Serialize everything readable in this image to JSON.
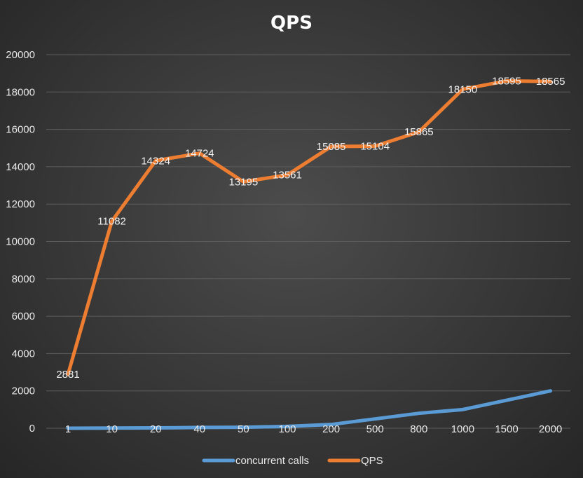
{
  "chart_data": {
    "type": "line",
    "title": "QPS",
    "x": [
      "1",
      "10",
      "20",
      "40",
      "50",
      "100",
      "200",
      "500",
      "800",
      "1000",
      "1500",
      "2000"
    ],
    "ylim": [
      0,
      20000
    ],
    "yticks": [
      0,
      2000,
      4000,
      6000,
      8000,
      10000,
      12000,
      14000,
      16000,
      18000,
      20000
    ],
    "grid": true,
    "legend_position": "bottom",
    "series": [
      {
        "name": "concurrent calls",
        "color": "#5b9bd5",
        "values": [
          1,
          10,
          20,
          40,
          50,
          100,
          200,
          500,
          800,
          1000,
          1500,
          2000
        ]
      },
      {
        "name": "QPS",
        "color": "#ed7d31",
        "values": [
          2881,
          11082,
          14324,
          14724,
          13195,
          13561,
          15085,
          15104,
          15865,
          18150,
          18595,
          18565
        ]
      }
    ]
  }
}
